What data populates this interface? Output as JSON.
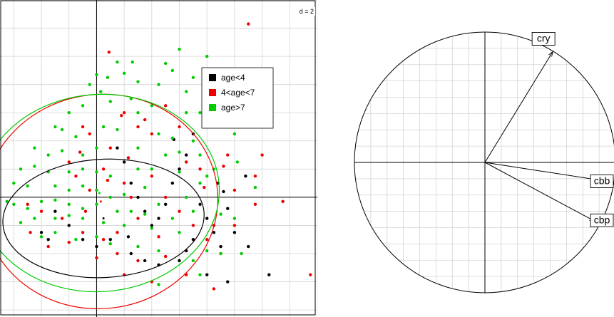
{
  "chart_data": [
    {
      "type": "scatter",
      "corner_label": "d = 2",
      "grid": true,
      "legend_position": "top-right",
      "xlim": [
        -7,
        16
      ],
      "ylim": [
        -8.5,
        14
      ],
      "colors": {
        "age_lt4": "#000000",
        "age_4_7": "#ee0000",
        "age_gt7": "#00cc00",
        "grid": "#d3d3d3",
        "axis": "#000000"
      },
      "series": [
        {
          "name": "age<4",
          "color_key": "age_lt4",
          "points": [
            [
              1.5,
              3.5
            ],
            [
              2,
              2.5
            ],
            [
              2.5,
              1
            ],
            [
              3,
              0
            ],
            [
              3.5,
              -1
            ],
            [
              4,
              -2
            ],
            [
              4.5,
              -1.5
            ],
            [
              5,
              -0.5
            ],
            [
              5.5,
              1
            ],
            [
              6,
              2
            ],
            [
              6.5,
              3
            ],
            [
              7,
              4.5
            ],
            [
              7.5,
              -0.5
            ],
            [
              8,
              -1.5
            ],
            [
              8.5,
              -2.5
            ],
            [
              9,
              -3.5
            ],
            [
              -3,
              -1
            ],
            [
              -2,
              -2
            ],
            [
              -1,
              -3
            ],
            [
              0,
              -3.5
            ],
            [
              1,
              -3
            ],
            [
              2.5,
              -4
            ],
            [
              3.5,
              -4.5
            ],
            [
              4.5,
              -4.8
            ],
            [
              6,
              -4.5
            ],
            [
              7,
              -3
            ],
            [
              8,
              -5.5
            ],
            [
              9.5,
              -0.8
            ],
            [
              10,
              -2.5
            ],
            [
              9.5,
              -6
            ],
            [
              10.8,
              1.5
            ],
            [
              -4,
              -2.5
            ],
            [
              -3.5,
              -3
            ],
            [
              11,
              -3.5
            ],
            [
              12.5,
              -5.5
            ],
            [
              9.2,
              0.4
            ],
            [
              8.8,
              1
            ],
            [
              5.6,
              4.1
            ],
            [
              6.5,
              -3.8
            ],
            [
              2.3,
              -2.8
            ]
          ]
        },
        {
          "name": "4<age<7",
          "color_key": "age_4_7",
          "points": [
            [
              11,
              12.3
            ],
            [
              0.9,
              10.3
            ],
            [
              -1,
              5
            ],
            [
              -0.5,
              4.5
            ],
            [
              2,
              6
            ],
            [
              3,
              5
            ],
            [
              3.5,
              5.5
            ],
            [
              4,
              4.5
            ],
            [
              5,
              6.5
            ],
            [
              6,
              5
            ],
            [
              -2,
              2.5
            ],
            [
              -1.5,
              1.5
            ],
            [
              -0.5,
              0.5
            ],
            [
              0.5,
              2
            ],
            [
              1,
              3.5
            ],
            [
              2,
              1
            ],
            [
              2.5,
              0
            ],
            [
              3,
              -1.5
            ],
            [
              1.5,
              -2.5
            ],
            [
              0.5,
              -3
            ],
            [
              -1,
              -2.5
            ],
            [
              -2.5,
              -1.5
            ],
            [
              -4,
              -1
            ],
            [
              -5,
              -0.5
            ],
            [
              4,
              1.5
            ],
            [
              5,
              0
            ],
            [
              6,
              -1
            ],
            [
              7,
              -2
            ],
            [
              8,
              -3
            ],
            [
              9,
              -4
            ],
            [
              10,
              -2
            ],
            [
              11.5,
              -0.5
            ],
            [
              12,
              3
            ],
            [
              13.5,
              -0.3
            ],
            [
              15.5,
              -5.5
            ],
            [
              6.5,
              2.5
            ],
            [
              7.5,
              2
            ],
            [
              9.5,
              3
            ],
            [
              10,
              0.5
            ],
            [
              8.5,
              -2
            ],
            [
              0,
              -4.3
            ],
            [
              1.5,
              -4
            ],
            [
              3,
              -4.5
            ],
            [
              2,
              -5.5
            ],
            [
              4,
              -6
            ],
            [
              5,
              -4.2
            ],
            [
              6.5,
              -5.5
            ],
            [
              8.5,
              -6.5
            ],
            [
              9.2,
              2.2
            ],
            [
              11.5,
              1.5
            ],
            [
              -2,
              -3.2
            ],
            [
              -3.5,
              -3.5
            ],
            [
              -4.8,
              -2.5
            ],
            [
              0.8,
              1.2
            ],
            [
              2.3,
              2.8
            ],
            [
              -1.2,
              3.2
            ],
            [
              4.5,
              -2.8
            ],
            [
              7.8,
              0.7
            ],
            [
              -0.8,
              -1
            ],
            [
              1.8,
              5.8
            ]
          ]
        },
        {
          "name": "age>7",
          "color_key": "age_gt7",
          "points": [
            [
              0,
              8.7
            ],
            [
              0.8,
              8.5
            ],
            [
              2,
              8.8
            ],
            [
              3,
              8.2
            ],
            [
              4.5,
              8
            ],
            [
              5.5,
              9
            ],
            [
              7,
              8.5
            ],
            [
              9,
              9
            ],
            [
              2.5,
              7
            ],
            [
              4,
              6.5
            ],
            [
              6.5,
              7.5
            ],
            [
              8,
              6.8
            ],
            [
              -2,
              6
            ],
            [
              -1,
              6.5
            ],
            [
              1,
              6.8
            ],
            [
              3,
              6
            ],
            [
              6.5,
              6
            ],
            [
              -3,
              5
            ],
            [
              -2.5,
              4.8
            ],
            [
              -1.5,
              4.3
            ],
            [
              0.5,
              5
            ],
            [
              1.5,
              4.8
            ],
            [
              4.5,
              4.5
            ],
            [
              5.5,
              4.2
            ],
            [
              7,
              4
            ],
            [
              9,
              5
            ],
            [
              10,
              4.5
            ],
            [
              -4.5,
              3.5
            ],
            [
              -3.5,
              3
            ],
            [
              -2.5,
              3.3
            ],
            [
              -1,
              3
            ],
            [
              0,
              3.5
            ],
            [
              3,
              3.5
            ],
            [
              5,
              3
            ],
            [
              6,
              3.2
            ],
            [
              7.5,
              3
            ],
            [
              -5.5,
              2
            ],
            [
              -4.5,
              2.2
            ],
            [
              -3.5,
              1.8
            ],
            [
              -2,
              1.8
            ],
            [
              -1,
              2
            ],
            [
              0,
              1.8
            ],
            [
              1,
              1.5
            ],
            [
              3,
              2
            ],
            [
              4,
              2
            ],
            [
              6,
              1.8
            ],
            [
              7.5,
              1
            ],
            [
              8.5,
              2
            ],
            [
              -6,
              1
            ],
            [
              -5,
              0.8
            ],
            [
              -3,
              0.8
            ],
            [
              -2,
              0.5
            ],
            [
              -1,
              0.8
            ],
            [
              0,
              0.5
            ],
            [
              1,
              0
            ],
            [
              2,
              0.2
            ],
            [
              3.5,
              0.7
            ],
            [
              4.5,
              -0.5
            ],
            [
              6.5,
              0
            ],
            [
              -6,
              -0.5
            ],
            [
              -5,
              -0.8
            ],
            [
              -4,
              -0.3
            ],
            [
              -3,
              -0.2
            ],
            [
              -2,
              -0.5
            ],
            [
              -1,
              -0.8
            ],
            [
              0,
              -0.5
            ],
            [
              1.5,
              -1
            ],
            [
              2.5,
              -1
            ],
            [
              3.5,
              -1.2
            ],
            [
              5.5,
              -1.5
            ],
            [
              -5.5,
              -1.8
            ],
            [
              -4.5,
              -1.5
            ],
            [
              -3,
              -1.5
            ],
            [
              -2,
              -1.3
            ],
            [
              -1,
              -1.5
            ],
            [
              0.5,
              -1.8
            ],
            [
              2,
              -2
            ],
            [
              4,
              -2.2
            ],
            [
              6,
              -2.5
            ],
            [
              -4,
              -2.8
            ],
            [
              -3,
              -2.5
            ],
            [
              -1.5,
              -3
            ],
            [
              0,
              -2.8
            ],
            [
              1,
              -3.3
            ],
            [
              3,
              -3.5
            ],
            [
              4.5,
              -3.8
            ],
            [
              7,
              -4.5
            ],
            [
              9,
              -4
            ],
            [
              10,
              -1.5
            ],
            [
              10.5,
              -4
            ],
            [
              8,
              -3.8
            ],
            [
              7,
              -1
            ],
            [
              8,
              1.5
            ],
            [
              9,
              -1.2
            ],
            [
              -6.5,
              -0.3
            ],
            [
              0.3,
              7.5
            ],
            [
              -0.5,
              8
            ],
            [
              5,
              9.5
            ],
            [
              6,
              10.5
            ],
            [
              1.5,
              9.6
            ],
            [
              2.6,
              9.6
            ],
            [
              8,
              10
            ],
            [
              7.5,
              6
            ],
            [
              11.5,
              0.7
            ],
            [
              7.5,
              -5.5
            ],
            [
              4.5,
              -6.2
            ],
            [
              10.2,
              2.5
            ]
          ]
        }
      ],
      "ellipses": [
        {
          "series": "age<4",
          "center": [
            0.5,
            -1.5
          ],
          "rx": 7.3,
          "ry": 4.2,
          "angle": -3
        },
        {
          "series": "4<age<7",
          "center": [
            0.3,
            -0.3
          ],
          "rx": 8.5,
          "ry": 7.6,
          "angle": -8
        },
        {
          "series": "age>7",
          "center": [
            0.2,
            0.3
          ],
          "rx": 8.7,
          "ry": 7.0,
          "angle": -4
        }
      ]
    },
    {
      "type": "correlation-circle",
      "radius": 1,
      "grid": true,
      "arrows": [
        {
          "label": "cry",
          "x": 0.52,
          "y": 0.85
        },
        {
          "label": "cbb",
          "x": 0.97,
          "y": -0.15
        },
        {
          "label": "cbp",
          "x": 0.84,
          "y": -0.45
        }
      ]
    }
  ]
}
